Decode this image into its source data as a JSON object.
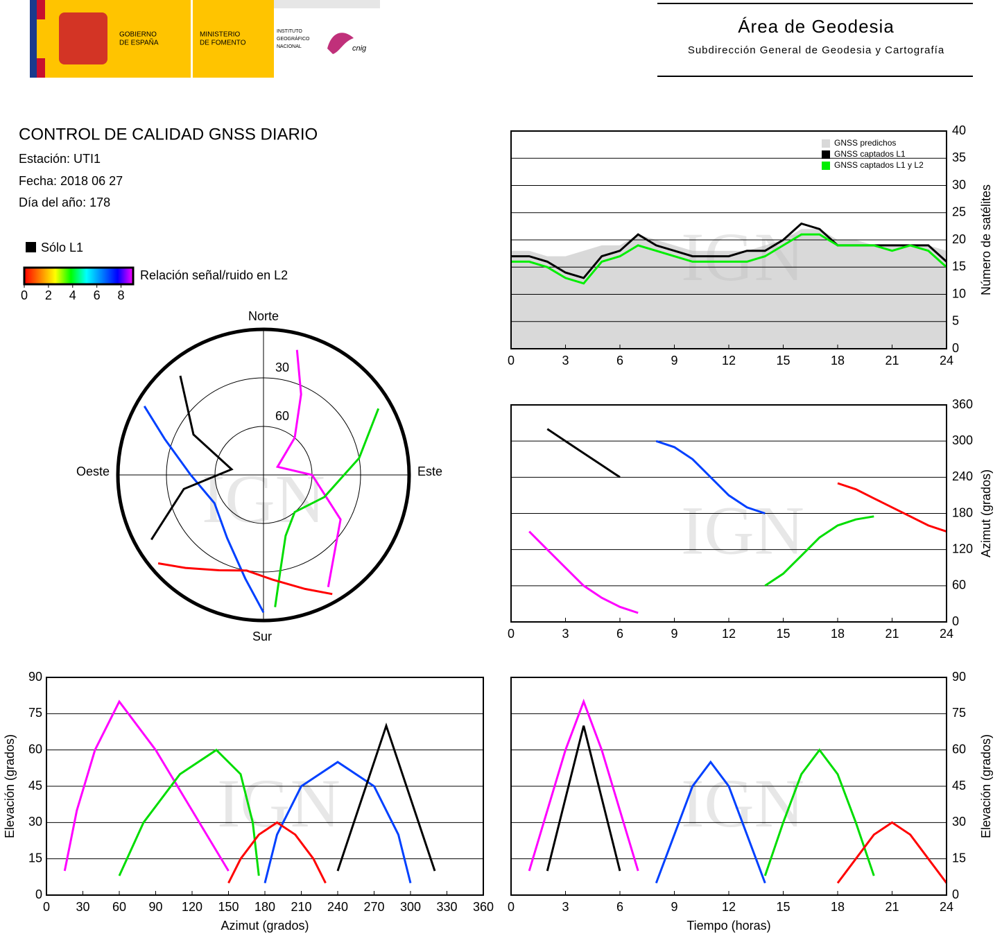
{
  "header": {
    "logo": {
      "government": [
        "GOBIERNO",
        "DE ESPAÑA"
      ],
      "ministry": [
        "MINISTERIO",
        "DE FOMENTO"
      ],
      "institute": [
        "INSTITUTO",
        "GEOGRÁFICO",
        "NACIONAL"
      ],
      "cnig": "cnig"
    },
    "title": "Área de Geodesia",
    "subtitle": "Subdirección General de Geodesia y Cartografía"
  },
  "report": {
    "title": "CONTROL DE CALIDAD GNSS DIARIO",
    "station": "Estación: UTI1",
    "date": "Fecha: 2018 06 27",
    "day_of_year": "Día del año: 178"
  },
  "legend": {
    "l1_only": {
      "label": "Sólo L1",
      "color": "#000000"
    },
    "colorbar": {
      "label": "Relación señal/ruido en L2",
      "lim": [
        0,
        9
      ],
      "ticks": [
        0,
        2,
        4,
        6,
        8
      ],
      "colors": [
        "#ff0000",
        "#ff8000",
        "#ffff00",
        "#00ff00",
        "#00ffff",
        "#0080ff",
        "#0000ff",
        "#ff00ff"
      ]
    }
  },
  "chart_data": [
    {
      "type": "polar",
      "watermark": "IGN",
      "direction_labels": {
        "north": "Norte",
        "east": "Este",
        "south": "Sur",
        "west": "Oeste"
      },
      "rlim": [
        90,
        0
      ],
      "rticks": [
        30,
        60
      ],
      "series": [
        {
          "color": "#ff00ff",
          "x": [
            150,
            120,
            90,
            60,
            40,
            25,
            15
          ],
          "values": [
            10,
            35,
            60,
            80,
            60,
            35,
            10
          ]
        },
        {
          "color": "#0040ff",
          "x": [
            300,
            290,
            270,
            240,
            210,
            190,
            180
          ],
          "values": [
            5,
            25,
            45,
            55,
            45,
            25,
            5
          ]
        },
        {
          "color": "#00dd00",
          "x": [
            60,
            80,
            110,
            140,
            160,
            170,
            175
          ],
          "values": [
            8,
            30,
            50,
            60,
            50,
            30,
            8
          ]
        },
        {
          "color": "#ff0000",
          "x": [
            230,
            220,
            205,
            190,
            175,
            160,
            150
          ],
          "values": [
            5,
            15,
            25,
            30,
            25,
            15,
            5
          ]
        },
        {
          "color": "#000000",
          "x": [
            320,
            300,
            280,
            260,
            240
          ],
          "values": [
            10,
            40,
            70,
            40,
            10
          ]
        }
      ]
    },
    {
      "type": "line",
      "yaxis_side": "right",
      "ylabel": "Número de satélites",
      "watermark": "IGN",
      "xlim": [
        0,
        24
      ],
      "xticks": [
        0,
        3,
        6,
        9,
        12,
        15,
        18,
        21,
        24
      ],
      "ylim": [
        0,
        40
      ],
      "yticks": [
        0,
        5,
        10,
        15,
        20,
        25,
        30,
        35,
        40
      ],
      "grid": true,
      "legend": "upper right",
      "x": [
        0,
        1,
        2,
        3,
        4,
        5,
        6,
        7,
        8,
        9,
        10,
        11,
        12,
        13,
        14,
        15,
        16,
        17,
        18,
        19,
        20,
        21,
        22,
        23,
        24
      ],
      "series": [
        {
          "name": "GNSS predichos",
          "color": "#d9d9d9",
          "fill": true,
          "values": [
            18,
            18,
            17,
            17,
            18,
            19,
            19,
            21,
            20,
            19,
            18,
            18,
            18,
            18,
            19,
            20,
            22,
            22,
            20,
            20,
            19,
            19,
            19,
            19,
            18
          ]
        },
        {
          "name": "GNSS captados L1",
          "color": "#000000",
          "values": [
            17,
            17,
            16,
            14,
            13,
            17,
            18,
            21,
            19,
            18,
            17,
            17,
            17,
            18,
            18,
            20,
            23,
            22,
            19,
            19,
            19,
            19,
            19,
            19,
            16
          ]
        },
        {
          "name": "GNSS captados L1 y L2",
          "color": "#00ee00",
          "values": [
            16,
            16,
            15,
            13,
            12,
            16,
            17,
            19,
            18,
            17,
            16,
            16,
            16,
            16,
            17,
            19,
            21,
            21,
            19,
            19,
            19,
            18,
            19,
            18,
            15
          ]
        }
      ]
    },
    {
      "type": "line",
      "yaxis_side": "right",
      "ylabel": "Azimut (grados)",
      "watermark": "IGN",
      "xlim": [
        0,
        24
      ],
      "xticks": [
        0,
        3,
        6,
        9,
        12,
        15,
        18,
        21,
        24
      ],
      "ylim": [
        0,
        360
      ],
      "yticks": [
        0,
        60,
        120,
        180,
        240,
        300,
        360
      ],
      "grid": true,
      "series": [
        {
          "color": "#ff00ff",
          "x": [
            1,
            2,
            3,
            4,
            5,
            6,
            7
          ],
          "values": [
            150,
            120,
            90,
            60,
            40,
            25,
            15
          ]
        },
        {
          "color": "#0040ff",
          "x": [
            8,
            9,
            10,
            11,
            12,
            13,
            14
          ],
          "values": [
            300,
            290,
            270,
            240,
            210,
            190,
            180
          ]
        },
        {
          "color": "#00dd00",
          "x": [
            14,
            15,
            16,
            17,
            18,
            19,
            20
          ],
          "values": [
            60,
            80,
            110,
            140,
            160,
            170,
            175
          ]
        },
        {
          "color": "#ff0000",
          "x": [
            18,
            19,
            20,
            21,
            22,
            23,
            24
          ],
          "values": [
            230,
            220,
            205,
            190,
            175,
            160,
            150
          ]
        },
        {
          "color": "#000000",
          "x": [
            2,
            3,
            4,
            5,
            6
          ],
          "values": [
            320,
            300,
            280,
            260,
            240
          ]
        }
      ]
    },
    {
      "type": "line",
      "yaxis_side": "left",
      "xlabel": "Azimut (grados)",
      "ylabel": "Elevación (grados)",
      "watermark": "IGN",
      "xlim": [
        0,
        360
      ],
      "xticks": [
        0,
        30,
        60,
        90,
        120,
        150,
        180,
        210,
        240,
        270,
        300,
        330,
        360
      ],
      "ylim": [
        0,
        90
      ],
      "yticks": [
        0,
        15,
        30,
        45,
        60,
        75,
        90
      ],
      "grid": true,
      "series": [
        {
          "color": "#ff00ff",
          "x": [
            150,
            120,
            90,
            60,
            40,
            25,
            15
          ],
          "values": [
            10,
            35,
            60,
            80,
            60,
            35,
            10
          ]
        },
        {
          "color": "#0040ff",
          "x": [
            300,
            290,
            270,
            240,
            210,
            190,
            180
          ],
          "values": [
            5,
            25,
            45,
            55,
            45,
            25,
            5
          ]
        },
        {
          "color": "#00dd00",
          "x": [
            60,
            80,
            110,
            140,
            160,
            170,
            175
          ],
          "values": [
            8,
            30,
            50,
            60,
            50,
            30,
            8
          ]
        },
        {
          "color": "#ff0000",
          "x": [
            230,
            220,
            205,
            190,
            175,
            160,
            150
          ],
          "values": [
            5,
            15,
            25,
            30,
            25,
            15,
            5
          ]
        },
        {
          "color": "#000000",
          "x": [
            320,
            300,
            280,
            260,
            240
          ],
          "values": [
            10,
            40,
            70,
            40,
            10
          ]
        }
      ]
    },
    {
      "type": "line",
      "yaxis_side": "right",
      "xlabel": "Tiempo (horas)",
      "ylabel": "Elevación (grados)",
      "watermark": "IGN",
      "xlim": [
        0,
        24
      ],
      "xticks": [
        0,
        3,
        6,
        9,
        12,
        15,
        18,
        21,
        24
      ],
      "ylim": [
        0,
        90
      ],
      "yticks": [
        0,
        15,
        30,
        45,
        60,
        75,
        90
      ],
      "grid": true,
      "series": [
        {
          "color": "#ff00ff",
          "x": [
            1,
            2,
            3,
            4,
            5,
            6,
            7
          ],
          "values": [
            10,
            35,
            60,
            80,
            60,
            35,
            10
          ]
        },
        {
          "color": "#0040ff",
          "x": [
            8,
            9,
            10,
            11,
            12,
            13,
            14
          ],
          "values": [
            5,
            25,
            45,
            55,
            45,
            25,
            5
          ]
        },
        {
          "color": "#00dd00",
          "x": [
            14,
            15,
            16,
            17,
            18,
            19,
            20
          ],
          "values": [
            8,
            30,
            50,
            60,
            50,
            30,
            8
          ]
        },
        {
          "color": "#ff0000",
          "x": [
            18,
            19,
            20,
            21,
            22,
            23,
            24
          ],
          "values": [
            5,
            15,
            25,
            30,
            25,
            15,
            5
          ]
        },
        {
          "color": "#000000",
          "x": [
            2,
            3,
            4,
            5,
            6
          ],
          "values": [
            10,
            40,
            70,
            40,
            10
          ]
        }
      ]
    }
  ]
}
